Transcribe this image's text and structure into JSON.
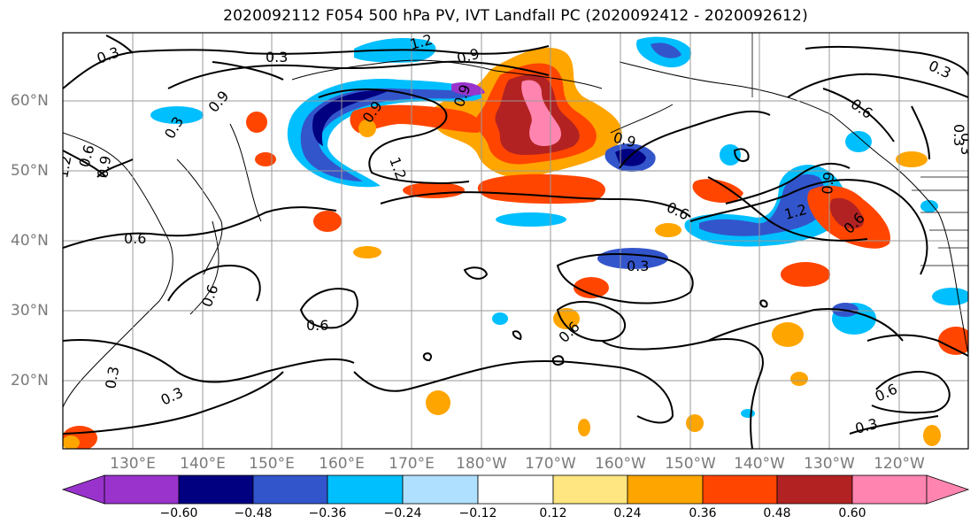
{
  "title": "2020092112 F054 500 hPa PV, IVT Landfall PC (2020092412 - 2020092612)",
  "latitude_labels": [
    "60°N",
    "50°N",
    "40°N",
    "30°N",
    "20°N"
  ],
  "longitude_labels": [
    "130°E",
    "140°E",
    "150°E",
    "160°E",
    "170°E",
    "180°W",
    "170°W",
    "160°W",
    "150°W",
    "140°W",
    "130°W",
    "120°W"
  ],
  "contour_labels": [
    "0.3",
    "0.3",
    "1.2",
    "0.9",
    "0.3",
    "0.9",
    "0.9",
    "0.9",
    "1.2",
    "0.9",
    "0.6",
    "0.3",
    "1.2",
    "0.6",
    "0.6",
    "0.9",
    "0.6",
    "0.6",
    "0.3",
    "0.6",
    "0.6",
    "0.6",
    "0.3",
    "0.3",
    "0.6",
    "0.3",
    "0.3",
    "1.2",
    "0.9",
    "0.3"
  ],
  "colorbar": {
    "tick_labels": [
      "−0.60",
      "−0.48",
      "−0.36",
      "−0.24",
      "−0.12",
      "0.12",
      "0.24",
      "0.36",
      "0.48",
      "0.60"
    ],
    "colors": [
      "#9933cc",
      "#000080",
      "#3355cc",
      "#00bfff",
      "#b0e0ff",
      "#ffffff",
      "#ffe680",
      "#ffa500",
      "#ff4500",
      "#b22222",
      "#ff85b0"
    ]
  }
}
